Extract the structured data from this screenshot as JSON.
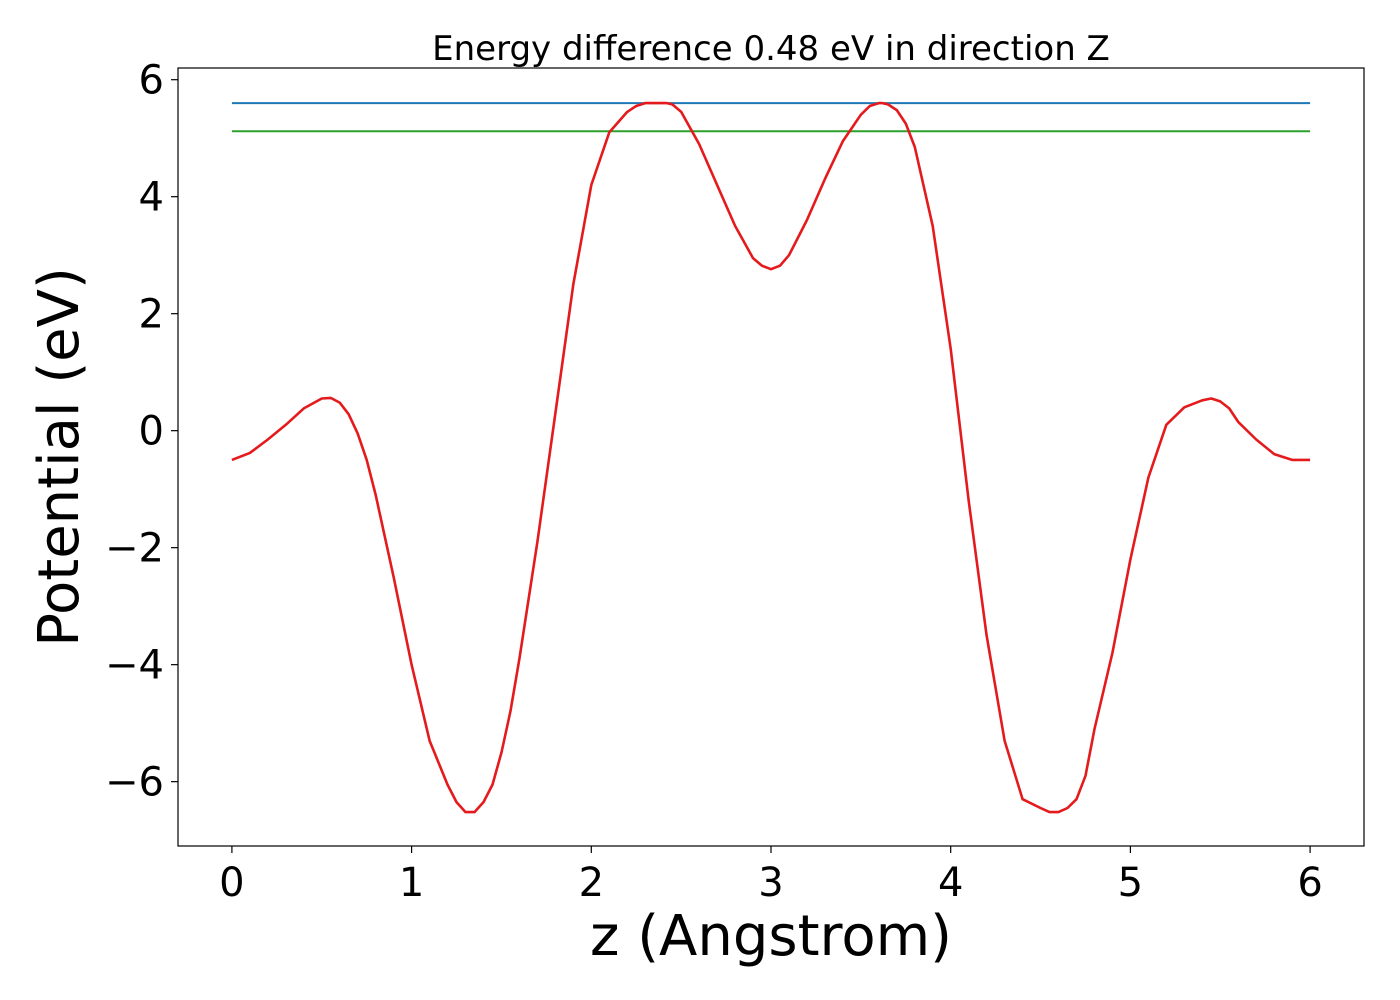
{
  "chart_data": {
    "type": "line",
    "title": "Energy difference 0.48 eV in direction Z",
    "xlabel": "z (Angstrom)",
    "ylabel": "Potential (eV)",
    "xlim": [
      -0.3,
      6.3
    ],
    "ylim": [
      -7.1,
      6.2
    ],
    "xticks": [
      0,
      1,
      2,
      3,
      4,
      5,
      6
    ],
    "xtick_labels": [
      "0",
      "1",
      "2",
      "3",
      "4",
      "5",
      "6"
    ],
    "yticks": [
      -6,
      -4,
      -2,
      0,
      2,
      4,
      6
    ],
    "ytick_labels": [
      "−6",
      "−4",
      "−2",
      "0",
      "2",
      "4",
      "6"
    ],
    "grid": false,
    "series": [
      {
        "color": "#1f77b4",
        "x": [
          0,
          6
        ],
        "y": [
          5.6,
          5.6
        ]
      },
      {
        "color": "#2ca02c",
        "x": [
          0,
          6
        ],
        "y": [
          5.12,
          5.12
        ]
      },
      {
        "color": "#e41a1c",
        "x": [
          0,
          0.1,
          0.2,
          0.3,
          0.4,
          0.5,
          0.55,
          0.6,
          0.65,
          0.7,
          0.75,
          0.8,
          0.9,
          1.0,
          1.1,
          1.2,
          1.25,
          1.3,
          1.35,
          1.4,
          1.45,
          1.5,
          1.55,
          1.6,
          1.7,
          1.8,
          1.9,
          2.0,
          2.1,
          2.2,
          2.25,
          2.3,
          2.35,
          2.4,
          2.42,
          2.45,
          2.5,
          2.6,
          2.7,
          2.8,
          2.9,
          2.95,
          3.0,
          3.05,
          3.1,
          3.2,
          3.3,
          3.4,
          3.5,
          3.55,
          3.6,
          3.62,
          3.65,
          3.7,
          3.75,
          3.8,
          3.9,
          4.0,
          4.1,
          4.2,
          4.3,
          4.4,
          4.5,
          4.55,
          4.6,
          4.65,
          4.7,
          4.75,
          4.8,
          4.9,
          5.0,
          5.1,
          5.2,
          5.3,
          5.4,
          5.45,
          5.5,
          5.55,
          5.6,
          5.7,
          5.8,
          5.9,
          6.0
        ],
        "y": [
          -0.5,
          -0.38,
          -0.15,
          0.1,
          0.38,
          0.55,
          0.56,
          0.48,
          0.28,
          -0.05,
          -0.5,
          -1.1,
          -2.5,
          -4.0,
          -5.3,
          -6.05,
          -6.35,
          -6.52,
          -6.52,
          -6.35,
          -6.05,
          -5.5,
          -4.8,
          -3.9,
          -1.9,
          0.3,
          2.5,
          4.2,
          5.1,
          5.45,
          5.55,
          5.6,
          5.6,
          5.6,
          5.6,
          5.58,
          5.45,
          4.9,
          4.2,
          3.5,
          2.95,
          2.82,
          2.76,
          2.82,
          3.0,
          3.6,
          4.3,
          4.95,
          5.4,
          5.55,
          5.6,
          5.6,
          5.58,
          5.48,
          5.25,
          4.85,
          3.5,
          1.4,
          -1.2,
          -3.5,
          -5.3,
          -6.3,
          -6.45,
          -6.52,
          -6.52,
          -6.45,
          -6.3,
          -5.9,
          -5.1,
          -3.8,
          -2.2,
          -0.8,
          0.1,
          0.4,
          0.52,
          0.55,
          0.5,
          0.38,
          0.15,
          -0.15,
          -0.4,
          -0.5,
          -0.5
        ]
      }
    ]
  }
}
